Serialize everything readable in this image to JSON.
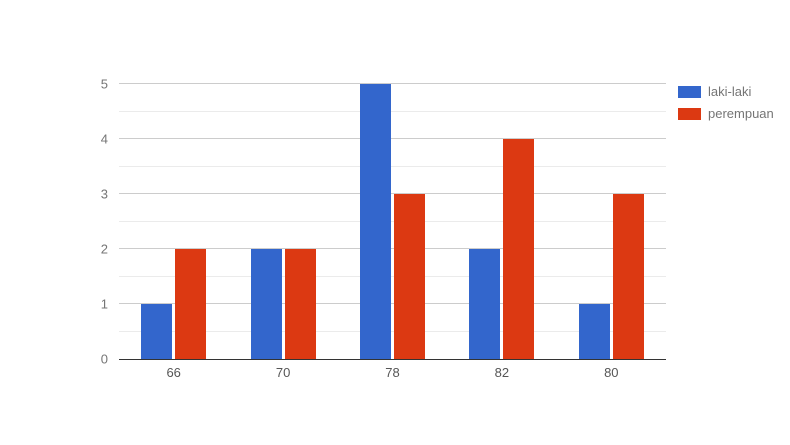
{
  "chart_data": {
    "type": "bar",
    "title": "",
    "categories": [
      "66",
      "70",
      "78",
      "82",
      "80"
    ],
    "series": [
      {
        "name": "laki-laki",
        "color": "#3366cc",
        "values": [
          1,
          2,
          5,
          2,
          1
        ]
      },
      {
        "name": "perempuan",
        "color": "#dc3912",
        "values": [
          2,
          2,
          3,
          4,
          3
        ]
      }
    ],
    "xlabel": "",
    "ylabel": "",
    "ylim": [
      0,
      5
    ],
    "yticks": [
      0,
      1,
      2,
      3,
      4,
      5
    ],
    "minor_gridline_step": 0.5,
    "grid": "on",
    "legend_position": "right",
    "colors": {
      "major_gridline": "#cccccc",
      "minor_gridline": "#ebebeb",
      "baseline": "#333333",
      "axis_text": "#757575",
      "background": "#ffffff"
    }
  }
}
